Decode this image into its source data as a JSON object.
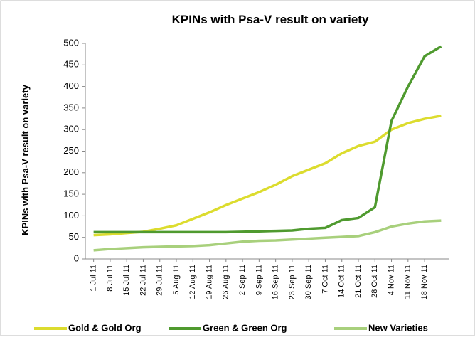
{
  "chart_data": {
    "type": "line",
    "title": "KPINs with Psa-V result on variety",
    "y_label": "KPINs with Psa-V result on variety",
    "categories": [
      "1 Jul 11",
      "8 Jul 11",
      "15 Jul 11",
      "22 Jul 11",
      "29 Jul 11",
      "5 Aug 11",
      "12 Aug 11",
      "19 Aug 11",
      "26 Aug 11",
      "2 Sep 11",
      "9 Sep 11",
      "16 Sep 11",
      "23 Sep 11",
      "30 Sep 11",
      "7 Oct 11",
      "14 Oct 11",
      "21 Oct 11",
      "28 Oct 11",
      "4 Nov 11",
      "11 Nov 11",
      "18 Nov 11",
      null
    ],
    "series": [
      {
        "name": "Gold & Gold Org",
        "color": "#dcdc2e",
        "values": [
          55,
          57,
          60,
          63,
          70,
          78,
          93,
          108,
          125,
          140,
          155,
          172,
          192,
          207,
          222,
          245,
          262,
          272,
          300,
          315,
          325,
          332
        ]
      },
      {
        "name": "Green & Green Org",
        "color": "#4f9a2f",
        "values": [
          62,
          62,
          62,
          62,
          62,
          62,
          62,
          62,
          62,
          63,
          64,
          65,
          66,
          70,
          72,
          90,
          95,
          120,
          320,
          400,
          470,
          493
        ]
      },
      {
        "name": "New Varieties",
        "color": "#a8d07c",
        "values": [
          20,
          23,
          25,
          27,
          28,
          29,
          30,
          32,
          36,
          40,
          42,
          43,
          45,
          47,
          49,
          51,
          53,
          62,
          75,
          82,
          87,
          89
        ]
      }
    ],
    "ylim": [
      0,
      500
    ],
    "yticks": [
      0,
      50,
      100,
      150,
      200,
      250,
      300,
      350,
      400,
      450,
      500
    ],
    "grid": false,
    "legend": "bottom"
  }
}
